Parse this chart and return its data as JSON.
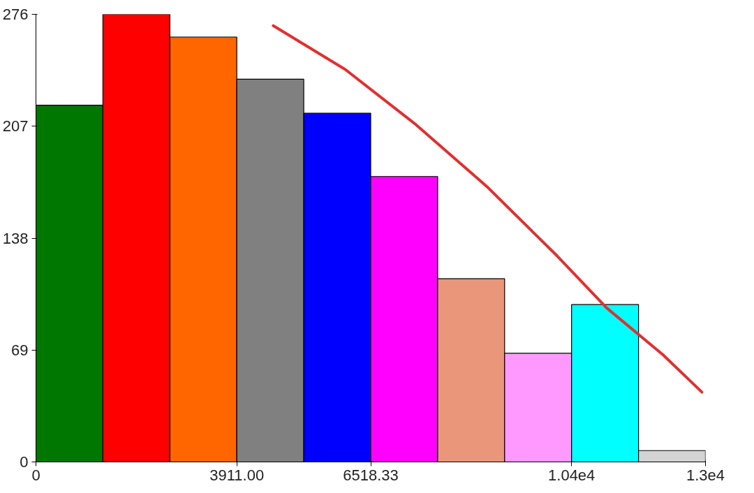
{
  "chart_data": {
    "type": "histogram",
    "bins": [
      0,
      1303.67,
      2607.33,
      3911,
      5214.67,
      6518.33,
      7822,
      9125.67,
      10429.33,
      11733,
      13036.66
    ],
    "values": [
      220,
      276,
      262,
      236,
      215,
      176,
      113,
      67,
      97,
      7
    ],
    "colors": [
      "#007700",
      "#ff0000",
      "#ff6600",
      "#808080",
      "#0000ff",
      "#ff00ff",
      "#e9967a",
      "#ff99ff",
      "#00ffff",
      "#d3d3d3"
    ],
    "series": [
      {
        "type": "line",
        "color": "#e03030",
        "x": [
          4620,
          6023,
          7398,
          8773,
          10149,
          11111,
          12212,
          12968
        ],
        "values": [
          269,
          242,
          208,
          170,
          127,
          95,
          66,
          43
        ]
      }
    ],
    "xlim": [
      0,
      13036.66
    ],
    "ylim": [
      0,
      276
    ],
    "xticks": [
      0,
      {
        "value": 3911,
        "label": "3911.00"
      },
      6518.33,
      {
        "value": 10429.33,
        "label": "1.04e4"
      },
      {
        "value": 13036.66,
        "label": "1.3e4"
      }
    ],
    "yticks": [
      0,
      69,
      138,
      207,
      276
    ],
    "grid": false
  }
}
